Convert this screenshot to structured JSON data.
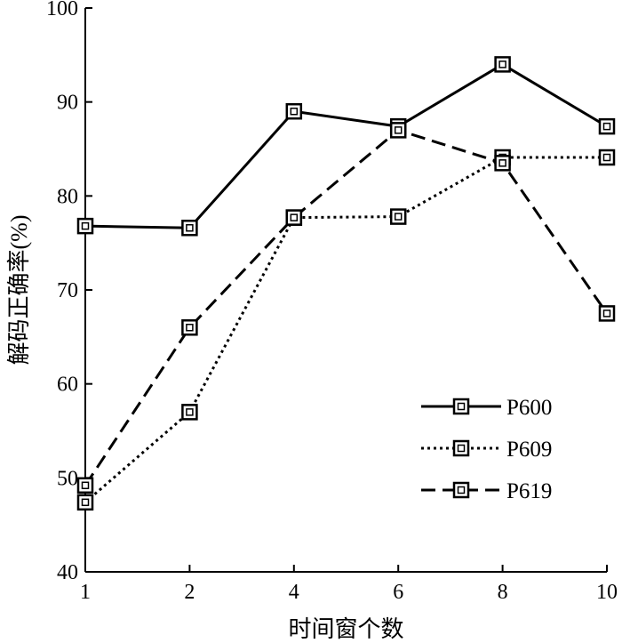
{
  "chart_data": {
    "type": "line",
    "title": "",
    "xlabel": "时间窗个数",
    "ylabel": "解码正确率(%)",
    "categories": [
      "1",
      "2",
      "4",
      "6",
      "8",
      "10"
    ],
    "ylim": [
      40,
      100
    ],
    "yticks": [
      "40",
      "50",
      "60",
      "70",
      "80",
      "90",
      "100"
    ],
    "grid": false,
    "legend_position": "bottom-right",
    "series": [
      {
        "name": "P600",
        "style": "solid",
        "marker": "square",
        "color": "#000000",
        "values": [
          76.8,
          76.6,
          89.0,
          87.4,
          94.0,
          87.4
        ]
      },
      {
        "name": "P609",
        "style": "dotted",
        "marker": "square",
        "color": "#000000",
        "values": [
          47.4,
          57.0,
          77.7,
          77.8,
          84.1,
          84.1
        ]
      },
      {
        "name": "P619",
        "style": "dashed",
        "marker": "square",
        "color": "#000000",
        "values": [
          49.2,
          66.0,
          77.7,
          87.0,
          83.5,
          67.5
        ]
      }
    ]
  }
}
